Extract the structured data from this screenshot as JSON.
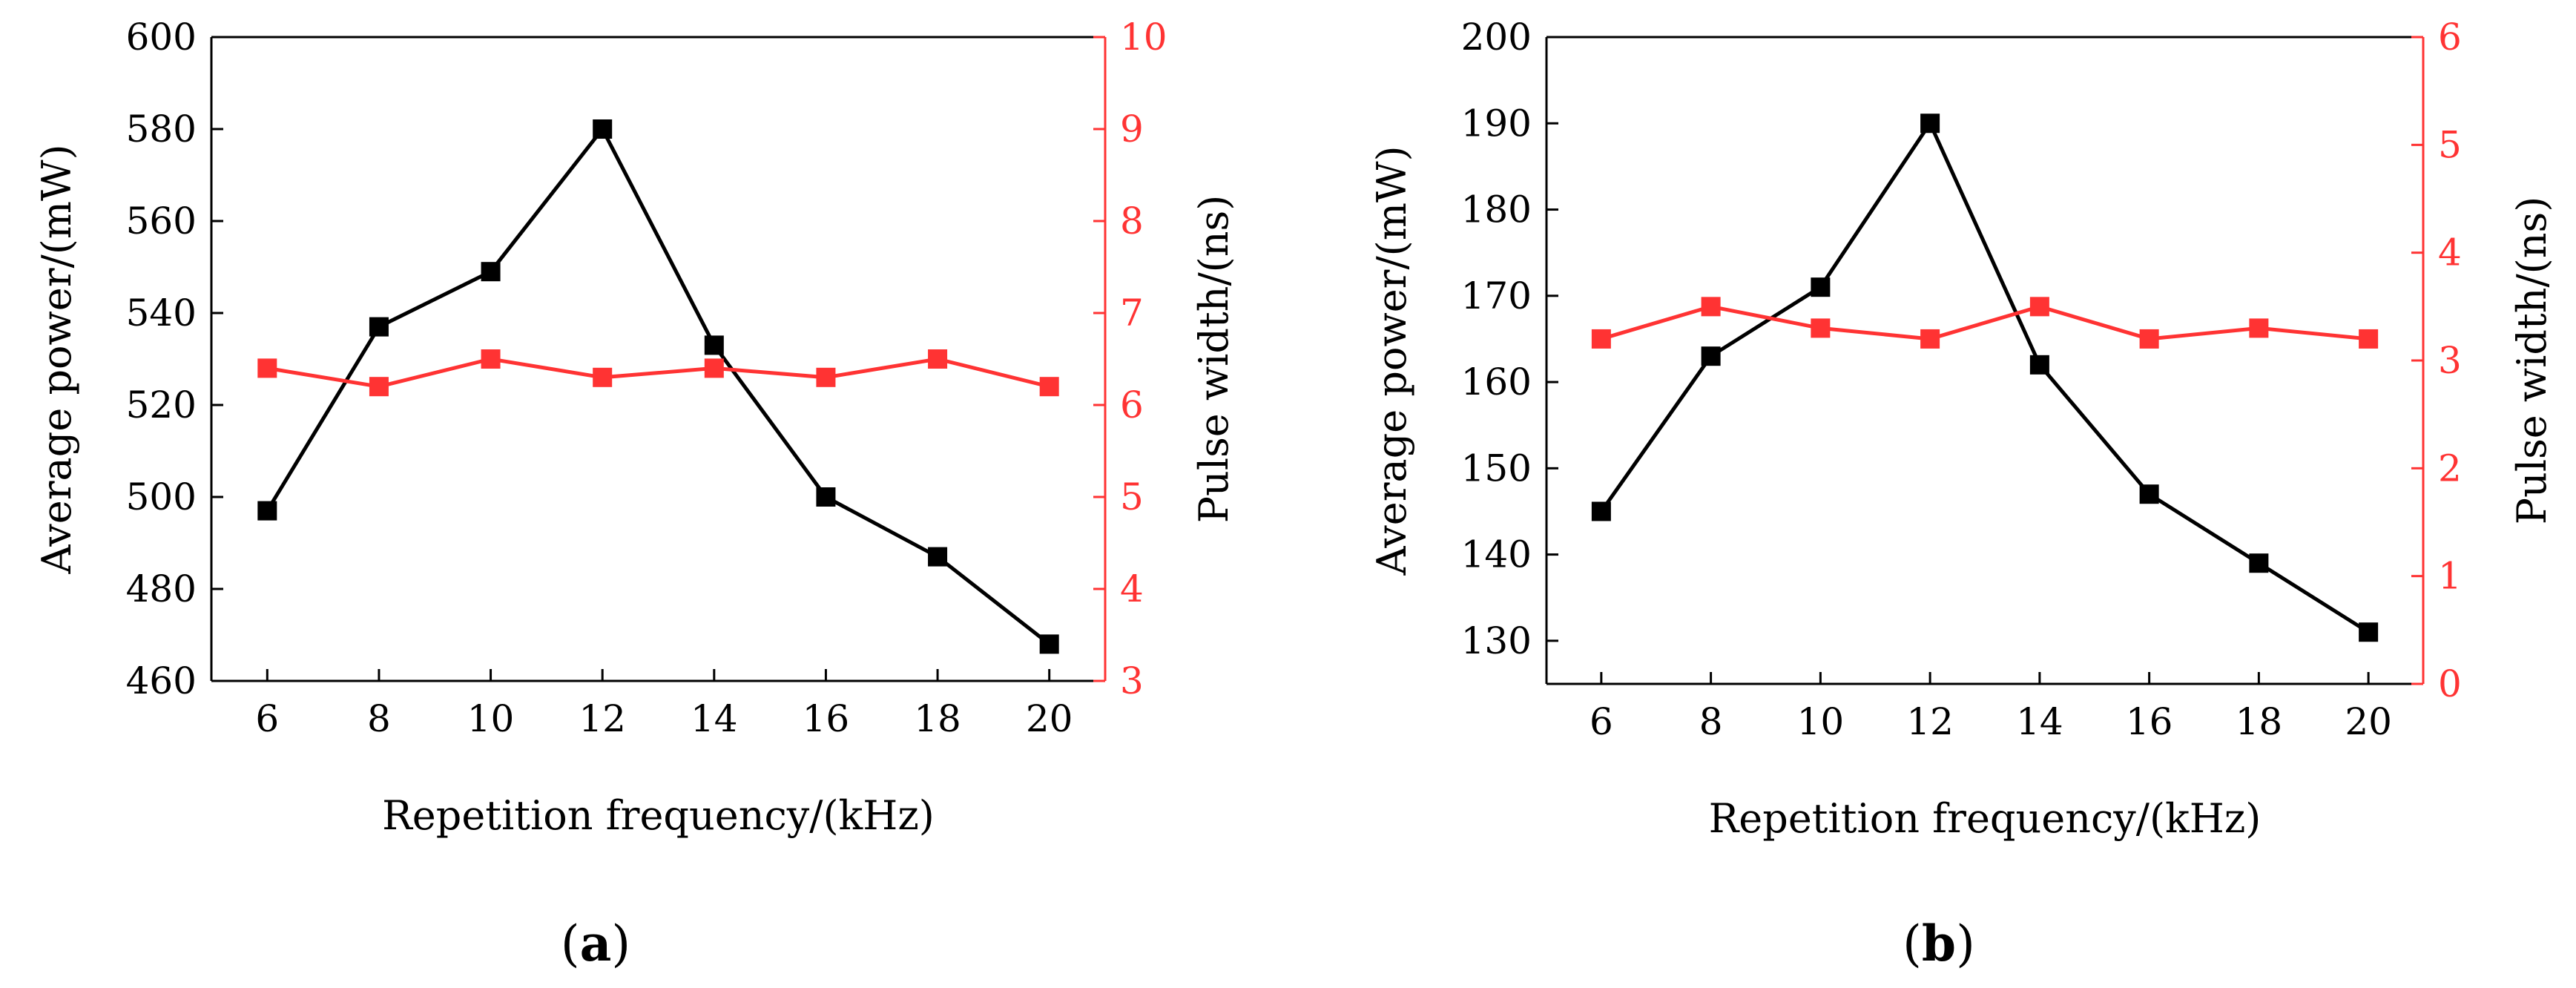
{
  "figure": {
    "colors": {
      "power": "#000000",
      "pulse": "#ff3333"
    }
  },
  "chart_data": [
    {
      "type": "line",
      "panel_label": "a",
      "xlabel": "Repetition frequency/(kHz)",
      "ylabel_left": "Average power/(mW)",
      "ylabel_right": "Pulse width/(ns)",
      "x": [
        6,
        8,
        10,
        12,
        14,
        16,
        18,
        20
      ],
      "x_ticks": [
        "6",
        "8",
        "10",
        "12",
        "14",
        "16",
        "18",
        "20"
      ],
      "xlim": [
        5,
        21
      ],
      "ylim_left": [
        460,
        600
      ],
      "ylim_right": [
        3,
        10
      ],
      "y_ticks_left": [
        "460",
        "480",
        "500",
        "520",
        "540",
        "560",
        "580",
        "600"
      ],
      "y_ticks_right": [
        "3",
        "4",
        "5",
        "6",
        "7",
        "8",
        "9",
        "10"
      ],
      "series": [
        {
          "name": "Average power",
          "axis": "left",
          "color": "#000000",
          "marker": "square",
          "values": [
            497,
            537,
            549,
            580,
            533,
            500,
            487,
            468
          ]
        },
        {
          "name": "Pulse width",
          "axis": "right",
          "color": "#ff3333",
          "marker": "square",
          "values": [
            6.4,
            6.2,
            6.5,
            6.3,
            6.4,
            6.3,
            6.5,
            6.2
          ]
        }
      ]
    },
    {
      "type": "line",
      "panel_label": "b",
      "xlabel": "Repetition frequency/(kHz)",
      "ylabel_left": "Average power/(mW)",
      "ylabel_right": "Pulse width/(ns)",
      "x": [
        6,
        8,
        10,
        12,
        14,
        16,
        18,
        20
      ],
      "x_ticks": [
        "6",
        "8",
        "10",
        "12",
        "14",
        "16",
        "18",
        "20"
      ],
      "xlim": [
        5,
        21
      ],
      "ylim_left": [
        125,
        200
      ],
      "ylim_right": [
        0,
        6
      ],
      "y_ticks_left": [
        "130",
        "140",
        "150",
        "160",
        "170",
        "180",
        "190",
        "200"
      ],
      "y_ticks_right": [
        "0",
        "1",
        "2",
        "3",
        "4",
        "5",
        "6"
      ],
      "series": [
        {
          "name": "Average power",
          "axis": "left",
          "color": "#000000",
          "marker": "square",
          "values": [
            145,
            163,
            171,
            190,
            162,
            147,
            139,
            131
          ]
        },
        {
          "name": "Pulse width",
          "axis": "right",
          "color": "#ff3333",
          "marker": "square",
          "values": [
            3.2,
            3.5,
            3.3,
            3.2,
            3.5,
            3.2,
            3.3,
            3.2
          ]
        }
      ]
    }
  ]
}
